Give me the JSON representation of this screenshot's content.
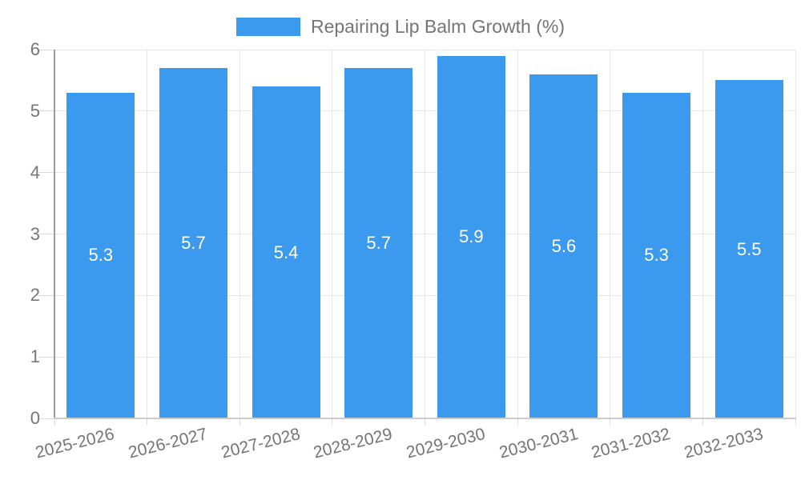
{
  "colors": {
    "bar": "#3B99EE",
    "grid": "#E6E6E6",
    "axis_y_line": "#9B9B9B",
    "axis_x_line": "#CCCCCC",
    "tick": "#D9D9D9",
    "text": "#757575",
    "value_label": "#FFFFFF",
    "background": "#FFFFFF"
  },
  "legend": {
    "label": "Repairing Lip Balm Growth (%)"
  },
  "chart_data": {
    "type": "bar",
    "title": "Repairing Lip Balm Growth (%)",
    "categories": [
      "2025-2026",
      "2026-2027",
      "2027-2028",
      "2028-2029",
      "2029-2030",
      "2030-2031",
      "2031-2032",
      "2032-2033"
    ],
    "values": [
      5.3,
      5.7,
      5.4,
      5.7,
      5.9,
      5.6,
      5.3,
      5.5
    ],
    "value_labels": [
      "5.3",
      "5.7",
      "5.4",
      "5.7",
      "5.9",
      "5.6",
      "5.3",
      "5.5"
    ],
    "xlabel": "",
    "ylabel": "",
    "ylim": [
      0,
      6
    ],
    "yticks": [
      0,
      1,
      2,
      3,
      4,
      5,
      6
    ],
    "grid": true,
    "legend_position": "top",
    "x_label_rotation_deg": -14,
    "bar_width_fraction": 0.735
  }
}
